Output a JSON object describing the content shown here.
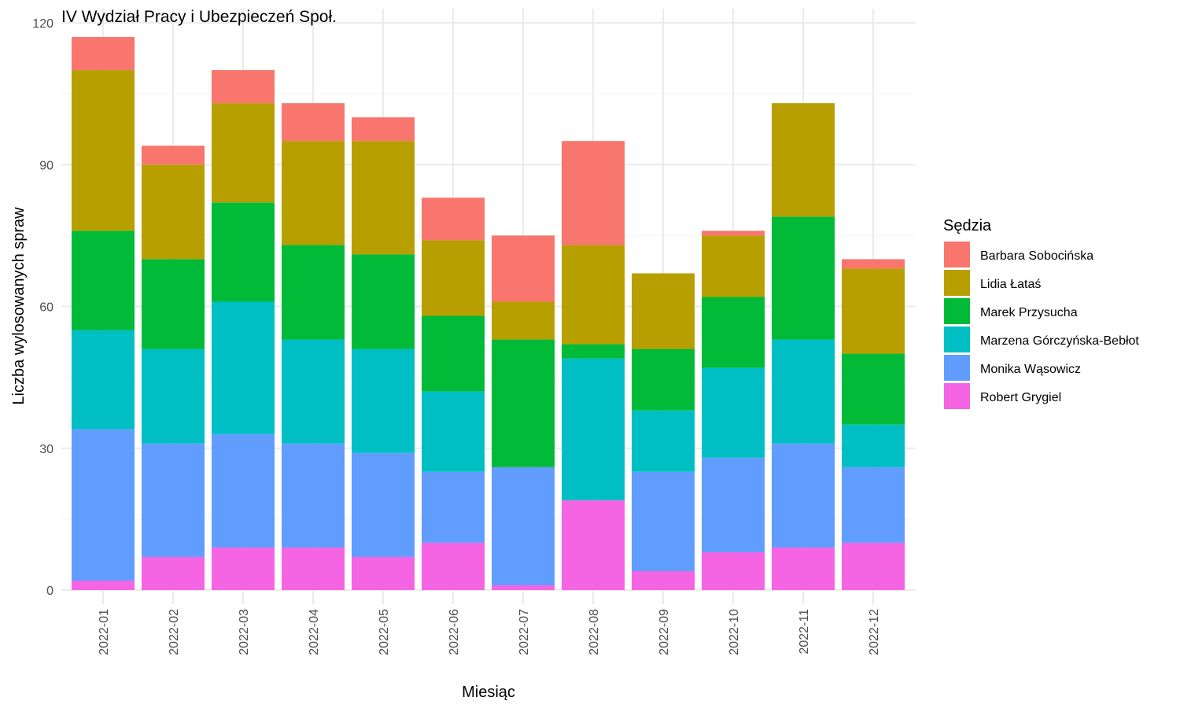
{
  "chart_data": {
    "type": "bar",
    "stacked": true,
    "title": "IV Wydział Pracy i Ubezpieczeń Społ.",
    "xlabel": "Miesiąc",
    "ylabel": "Liczba wylosowanych spraw",
    "ylim": [
      0,
      120
    ],
    "yticks": [
      0,
      30,
      60,
      90,
      120
    ],
    "grid": true,
    "legend_title": "Sędzia",
    "legend_position": "right",
    "categories": [
      "2022-01",
      "2022-02",
      "2022-03",
      "2022-04",
      "2022-05",
      "2022-06",
      "2022-07",
      "2022-08",
      "2022-09",
      "2022-10",
      "2022-11",
      "2022-12"
    ],
    "series": [
      {
        "name": "Robert Grygiel",
        "color": "#F564E3",
        "values": [
          2,
          7,
          9,
          9,
          7,
          10,
          1,
          19,
          4,
          8,
          9,
          10
        ]
      },
      {
        "name": "Monika Wąsowicz",
        "color": "#619CFF",
        "values": [
          32,
          24,
          24,
          22,
          22,
          15,
          25,
          0,
          21,
          20,
          22,
          16
        ]
      },
      {
        "name": "Marzena Górczyńska-Bebłot",
        "color": "#00BFC4",
        "values": [
          21,
          20,
          28,
          22,
          22,
          17,
          0,
          30,
          13,
          19,
          22,
          9
        ]
      },
      {
        "name": "Marek Przysucha",
        "color": "#00BA38",
        "values": [
          21,
          19,
          21,
          20,
          20,
          16,
          27,
          3,
          13,
          15,
          26,
          15
        ]
      },
      {
        "name": "Lidia Łataś",
        "color": "#B79F00",
        "values": [
          34,
          20,
          21,
          22,
          24,
          16,
          8,
          21,
          16,
          13,
          24,
          18
        ]
      },
      {
        "name": "Barbara Sobocińska",
        "color": "#F8766D",
        "values": [
          7,
          4,
          7,
          8,
          5,
          9,
          14,
          22,
          0,
          1,
          0,
          2
        ]
      }
    ],
    "legend_order": [
      "Barbara Sobocińska",
      "Lidia Łataś",
      "Marek Przysucha",
      "Marzena Górczyńska-Bebłot",
      "Monika Wąsowicz",
      "Robert Grygiel"
    ]
  }
}
